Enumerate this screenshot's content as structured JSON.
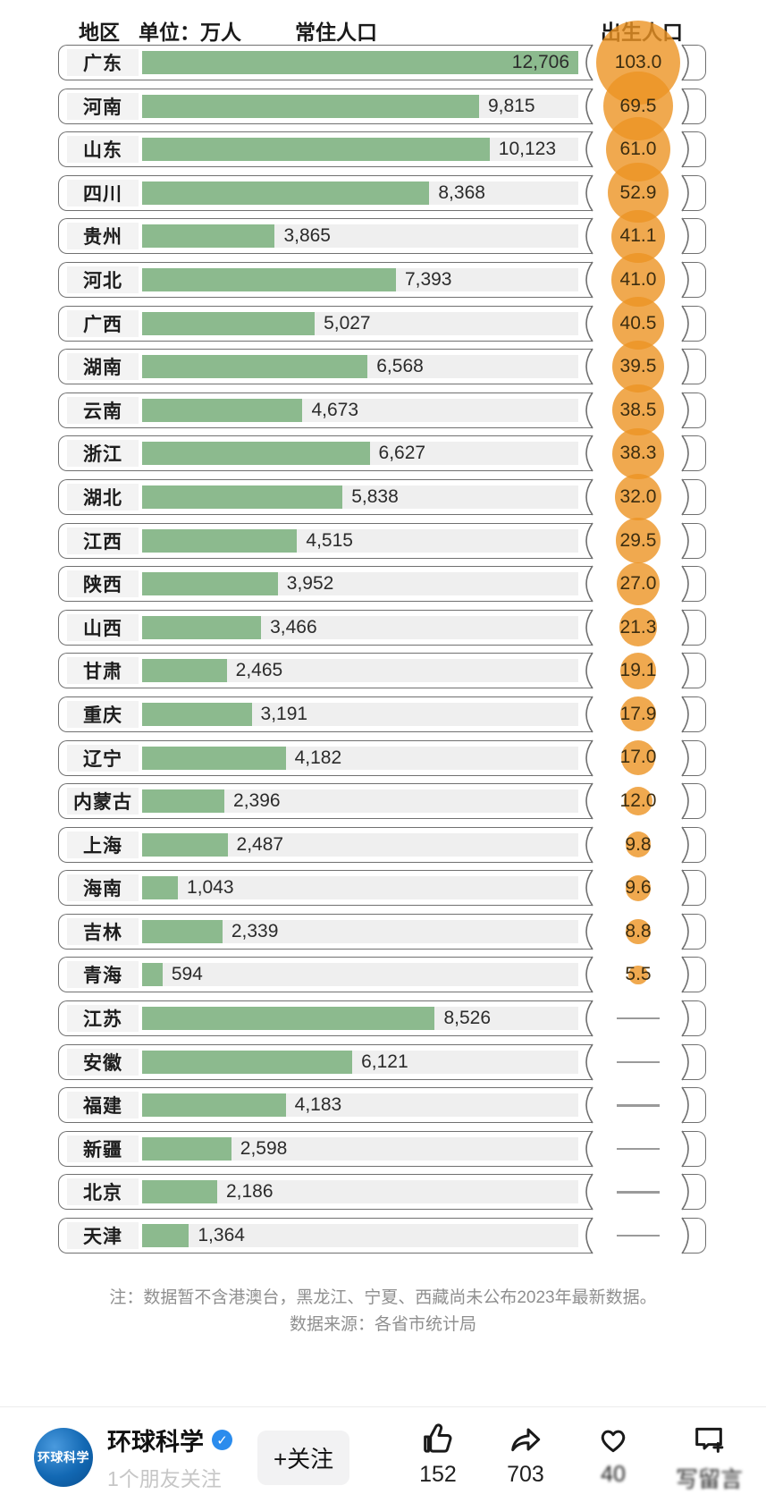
{
  "header": {
    "region": "地区",
    "unit": "单位：万人",
    "resident": "常住人口",
    "birth": "出生人口"
  },
  "chart_data": {
    "type": "bar",
    "unit": "万人",
    "categories": [
      "广东",
      "河南",
      "山东",
      "四川",
      "贵州",
      "河北",
      "广西",
      "湖南",
      "云南",
      "浙江",
      "湖北",
      "江西",
      "陕西",
      "山西",
      "甘肃",
      "重庆",
      "辽宁",
      "内蒙古",
      "上海",
      "海南",
      "吉林",
      "青海",
      "江苏",
      "安徽",
      "福建",
      "新疆",
      "北京",
      "天津"
    ],
    "series": [
      {
        "name": "常住人口",
        "values": [
          12706,
          9815,
          10123,
          8368,
          3865,
          7393,
          5027,
          6568,
          4673,
          6627,
          5838,
          4515,
          3952,
          3466,
          2465,
          3191,
          4182,
          2396,
          2487,
          1043,
          2339,
          594,
          8526,
          6121,
          4183,
          2598,
          2186,
          1364
        ]
      },
      {
        "name": "出生人口",
        "values": [
          103.0,
          69.5,
          61.0,
          52.9,
          41.1,
          41.0,
          40.5,
          39.5,
          38.5,
          38.3,
          32.0,
          29.5,
          27.0,
          21.3,
          19.1,
          17.9,
          17.0,
          12.0,
          9.8,
          9.6,
          8.8,
          5.5,
          null,
          null,
          null,
          null,
          null,
          null
        ]
      }
    ],
    "xlim": [
      0,
      12706
    ],
    "missing_marker": "—",
    "legend_position": "none",
    "grid": false,
    "bar_color": "#8cba8e",
    "track_color": "#efefef",
    "circle_color": "rgba(236,148,35,0.8)",
    "outline_color": "#707070"
  },
  "notes": [
    "注：数据暂不含港澳台，黑龙江、宁夏、西藏尚未公布2023年最新数据。",
    "数据来源：各省市统计局"
  ],
  "footer": {
    "avatar_text": "环球科学",
    "account_name": "环球科学",
    "verified_badge": "✓",
    "followers_note": "1个朋友关注",
    "follow_button": "+关注",
    "actions": [
      {
        "name": "like",
        "icon": "thumbs-up-icon",
        "count": "152"
      },
      {
        "name": "share",
        "icon": "share-arrow-icon",
        "count": "703"
      },
      {
        "name": "favorite",
        "icon": "heart-icon",
        "count": "40"
      },
      {
        "name": "comment",
        "icon": "comment-plus-icon",
        "count": "写留言"
      }
    ]
  }
}
